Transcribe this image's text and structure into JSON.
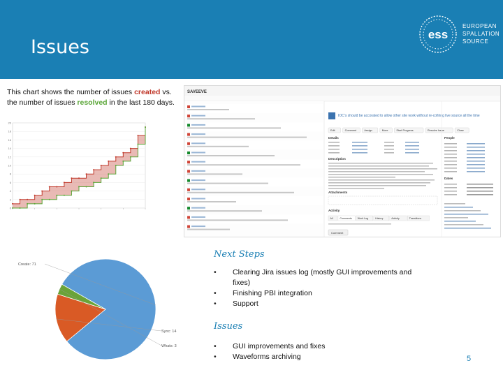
{
  "header": {
    "title": "Issues",
    "logo_lines": [
      "EUROPEAN",
      "SPALLATION",
      "SOURCE"
    ],
    "logo_mark": "ess",
    "color": "#1a7fb4"
  },
  "intro": {
    "part1": "This chart shows the number of issues ",
    "created": "created",
    "part2": " vs. the number of issues ",
    "resolved": "resolved",
    "part3": " in the last 180 days."
  },
  "next_steps": {
    "heading": "Next Steps",
    "items": [
      "Clearing Jira issues log (mostly GUI improvements and fixes)",
      "Finishing PBI integration",
      "Support"
    ]
  },
  "issues_section": {
    "heading": "Issues",
    "items": [
      "GUI improvements and fixes",
      "Waveforms archiving"
    ]
  },
  "page_number": "5",
  "chart_data": [
    {
      "type": "area",
      "title": "",
      "xlabel": "",
      "ylabel": "",
      "x": [
        0,
        10,
        20,
        30,
        40,
        50,
        60,
        70,
        80,
        90,
        100,
        110,
        120,
        130,
        140,
        150,
        160,
        170,
        180
      ],
      "series": [
        {
          "name": "created",
          "color": "#c0392b",
          "values": [
            1,
            2,
            2,
            3,
            4,
            5,
            5,
            6,
            7,
            7,
            8,
            9,
            10,
            11,
            12,
            13,
            14,
            17,
            19
          ]
        },
        {
          "name": "resolved",
          "color": "#5aa637",
          "values": [
            0,
            0,
            1,
            1,
            2,
            2,
            3,
            3,
            4,
            5,
            5,
            6,
            7,
            8,
            10,
            11,
            12,
            15,
            19
          ]
        }
      ],
      "ylim": [
        0,
        20
      ],
      "grid": true
    },
    {
      "type": "pie",
      "title": "",
      "slices": [
        {
          "label": "Create: 71",
          "value": 71,
          "color": "#5b9bd5"
        },
        {
          "label": "Sync: 14",
          "value": 14,
          "color": "#d95a25"
        },
        {
          "label": "Whats: 3",
          "value": 3,
          "color": "#6aa338"
        }
      ]
    }
  ],
  "jira": {
    "toolbar_title": "SAVEEVE",
    "issue_title": "IOC's should be accorated to allow other site work without re-cofiring live source all the time",
    "buttons": [
      "Edit",
      "Comment",
      "Assign",
      "More",
      "Start Progress",
      "Resolve Issue",
      "Close"
    ],
    "section_labels": [
      "Details",
      "Description",
      "Attachments",
      "Activity"
    ],
    "people_labels": [
      "People",
      "Dates"
    ],
    "activity_tabs": [
      "All",
      "Comments",
      "Work Log",
      "History",
      "Activity",
      "Transitions"
    ],
    "bottom_button": "Comment",
    "list_rows": 14,
    "colors": {
      "accent": "#3b73af",
      "status_red": "#d04437",
      "status_green": "#14892c",
      "panel": "#f5f5f5"
    }
  }
}
